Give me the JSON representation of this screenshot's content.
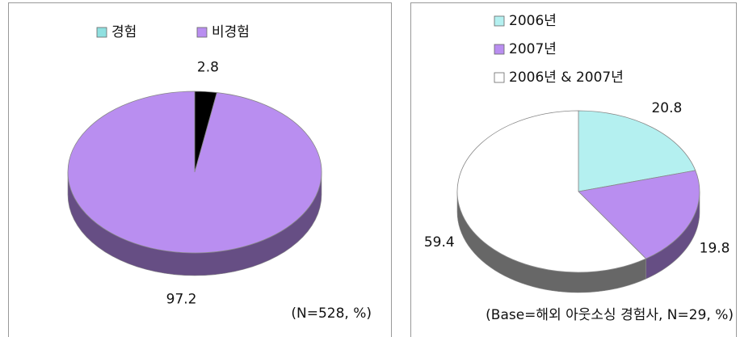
{
  "chart_data": [
    {
      "type": "pie",
      "categories": [
        "경험",
        "비경험"
      ],
      "values": [
        2.8,
        97.2
      ],
      "colors": [
        "#000000",
        "#b98ef0"
      ],
      "legend_colors": [
        "#8fe0e0",
        "#b98ef0"
      ],
      "legend": "top",
      "note": "(N=528, %)"
    },
    {
      "type": "pie",
      "categories": [
        "2006년",
        "2007년",
        "2006년 & 2007년"
      ],
      "values": [
        20.8,
        19.8,
        59.4
      ],
      "colors": [
        "#b4f0f0",
        "#b98ef0",
        "#ffffff"
      ],
      "legend_colors": [
        "#b4f0f0",
        "#b98ef0",
        "#ffffff"
      ],
      "legend": "top-left",
      "note": "(Base=해외 아웃소싱 경험사, N=29, %)"
    }
  ]
}
